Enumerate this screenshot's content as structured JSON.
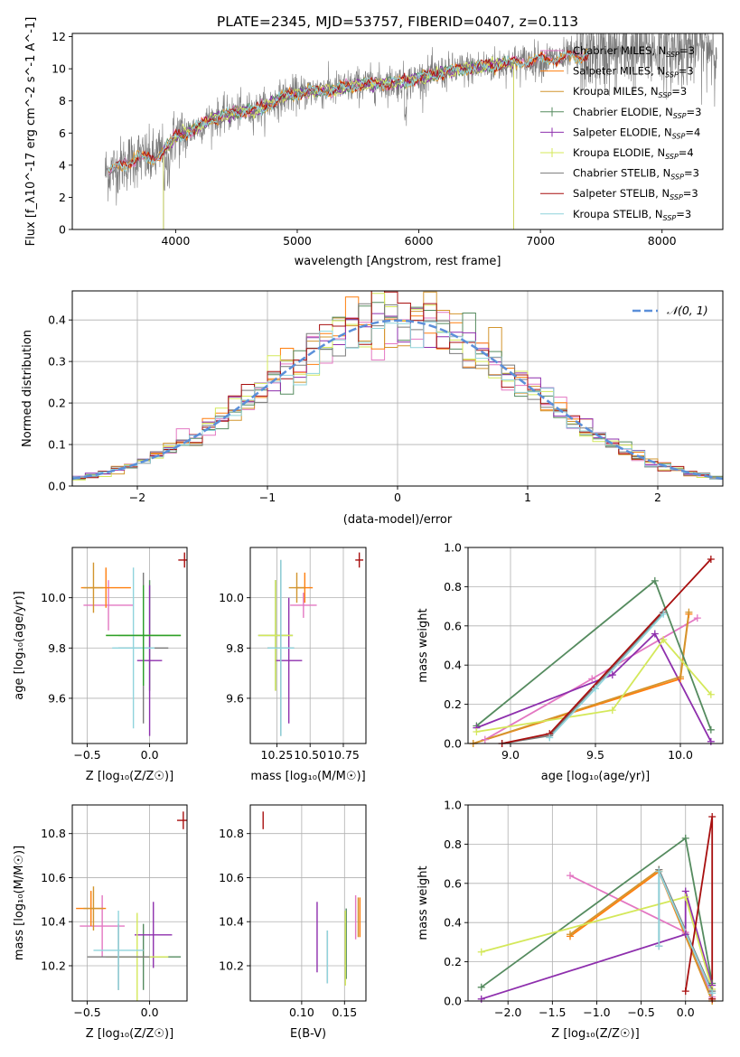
{
  "figure": {
    "title": "PLATE=2345, MJD=53757, FIBERID=0407, z=0.113"
  },
  "colors": {
    "Chabrier MILES": "#e377c2",
    "Salpeter MILES": "#ff7f0e",
    "Kroupa MILES": "#d2952e",
    "Chabrier ELODIE": "#558b5f",
    "Salpeter ELODIE": "#8e2fad",
    "Kroupa ELODIE": "#d4e85a",
    "Chabrier STELIB": "#7a7a7a",
    "Salpeter STELIB": "#a80f0f",
    "Kroupa STELIB": "#8fd4dc",
    "extra_green": "#2ca02c",
    "gaussian": "#5b8fd9",
    "grid": "#b0b0b0"
  },
  "chart_data": [
    {
      "id": "spectrum",
      "type": "line",
      "xlabel": "wavelength [Angstrom, rest frame]",
      "ylabel": "Flux [f_λ10^-17 erg cm^-2 s^-1 A^-1]",
      "xlim": [
        3150,
        8500
      ],
      "ylim": [
        0,
        12.2
      ],
      "xticks": [
        4000,
        5000,
        6000,
        7000,
        8000
      ],
      "yticks": [
        0,
        2,
        4,
        6,
        8,
        10,
        12
      ],
      "grid": false,
      "legend_position": "upper-right",
      "legend": [
        {
          "model": "Chabrier MILES",
          "label": "Chabrier MILES, N",
          "sub": "SSP",
          "suffix": "=3"
        },
        {
          "model": "Salpeter MILES",
          "label": "Salpeter MILES, N",
          "sub": "SSP",
          "suffix": "=3"
        },
        {
          "model": "Kroupa MILES",
          "label": "Kroupa MILES, N",
          "sub": "SSP",
          "suffix": "=3"
        },
        {
          "model": "Chabrier ELODIE",
          "label": "Chabrier ELODIE, N",
          "sub": "SSP",
          "suffix": "=3"
        },
        {
          "model": "Salpeter ELODIE",
          "label": "Salpeter ELODIE, N",
          "sub": "SSP",
          "suffix": "=4"
        },
        {
          "model": "Kroupa ELODIE",
          "label": "Kroupa ELODIE, N",
          "sub": "SSP",
          "suffix": "=4"
        },
        {
          "model": "Chabrier STELIB",
          "label": "Chabrier STELIB, N",
          "sub": "SSP",
          "suffix": "=3"
        },
        {
          "model": "Salpeter STELIB",
          "label": "Salpeter STELIB, N",
          "sub": "SSP",
          "suffix": "=3"
        },
        {
          "model": "Kroupa STELIB",
          "label": "Kroupa STELIB, N",
          "sub": "SSP",
          "suffix": "=3"
        }
      ],
      "continuum": [
        [
          3450,
          3.6
        ],
        [
          3600,
          4.2
        ],
        [
          3700,
          4.5
        ],
        [
          3800,
          4.3
        ],
        [
          3900,
          4.9
        ],
        [
          4000,
          5.8
        ],
        [
          4100,
          6.0
        ],
        [
          4300,
          6.9
        ],
        [
          4500,
          7.3
        ],
        [
          4700,
          7.5
        ],
        [
          4900,
          8.3
        ],
        [
          5100,
          8.6
        ],
        [
          5300,
          8.7
        ],
        [
          5500,
          9.0
        ],
        [
          5700,
          9.1
        ],
        [
          5900,
          9.2
        ],
        [
          6100,
          9.6
        ],
        [
          6300,
          9.9
        ],
        [
          6500,
          10.1
        ],
        [
          6700,
          10.3
        ],
        [
          6900,
          10.5
        ],
        [
          7100,
          10.6
        ],
        [
          7300,
          10.8
        ],
        [
          7400,
          10.9
        ]
      ],
      "data_range": [
        3420,
        8450
      ],
      "model_ranges": {
        "Chabrier MILES": [
          3450,
          7400
        ],
        "Salpeter MILES": [
          3450,
          7400
        ],
        "Kroupa MILES": [
          3450,
          7400
        ],
        "Chabrier ELODIE": [
          3900,
          6780
        ],
        "Salpeter ELODIE": [
          3900,
          6780
        ],
        "Kroupa ELODIE": [
          3900,
          6780
        ],
        "Chabrier STELIB": [
          3450,
          7400
        ],
        "Salpeter STELIB": [
          3450,
          7400
        ],
        "Kroupa STELIB": [
          3450,
          7400
        ]
      }
    },
    {
      "id": "residuals",
      "type": "line",
      "xlabel": "(data-model)/error",
      "ylabel": "Normed distribution",
      "xlim": [
        -2.5,
        2.5
      ],
      "ylim": [
        0,
        0.47
      ],
      "xticks": [
        -2,
        -1,
        0,
        1,
        2
      ],
      "yticks": [
        0.0,
        0.1,
        0.2,
        0.3,
        0.4
      ],
      "grid": true,
      "legend_position": "upper-right",
      "legend": [
        {
          "label": "𝒩(0, 1)",
          "style": "dashed"
        }
      ],
      "bins": {
        "start": -2.5,
        "width": 0.1,
        "count": 50
      },
      "gaussian": {
        "mu": 0,
        "sigma": 1
      }
    },
    {
      "id": "age_vs_Z",
      "type": "scatter",
      "xlabel": "Z [log₁₀(Z/Z☉)]",
      "ylabel": "age  [log₁₀(age/yr)]",
      "xlim": [
        -0.62,
        0.3
      ],
      "ylim": [
        9.42,
        10.2
      ],
      "xticks": [
        -0.5,
        0.0
      ],
      "yticks": [
        9.6,
        9.8,
        10.0
      ],
      "grid": true,
      "points": [
        {
          "model": "Chabrier MILES",
          "x": -0.33,
          "y": 9.97,
          "xerr": 0.2,
          "yerr": 0.1
        },
        {
          "model": "Salpeter MILES",
          "x": -0.35,
          "y": 10.04,
          "xerr": 0.2,
          "yerr": 0.08
        },
        {
          "model": "Kroupa MILES",
          "x": -0.45,
          "y": 10.04,
          "xerr": 0.08,
          "yerr": 0.1
        },
        {
          "model": "Chabrier ELODIE",
          "x": 0.0,
          "y": 9.85,
          "xerr": 0.25,
          "yerr": 0.22
        },
        {
          "model": "Salpeter ELODIE",
          "x": 0.0,
          "y": 9.75,
          "xerr": 0.1,
          "yerr": 0.3
        },
        {
          "model": "Kroupa ELODIE",
          "x": -0.05,
          "y": 9.85,
          "xerr": 0.3,
          "yerr": 0.2
        },
        {
          "model": "Chabrier STELIB",
          "x": -0.05,
          "y": 9.8,
          "xerr": 0.2,
          "yerr": 0.3
        },
        {
          "model": "Salpeter STELIB",
          "x": 0.28,
          "y": 10.15,
          "xerr": 0.05,
          "yerr": 0.03
        },
        {
          "model": "Kroupa STELIB",
          "x": -0.13,
          "y": 9.8,
          "xerr": 0.17,
          "yerr": 0.32
        },
        {
          "model": "extra_green",
          "x": -0.05,
          "y": 9.85,
          "xerr": 0.3,
          "yerr": 0.2
        }
      ]
    },
    {
      "id": "age_vs_mass",
      "type": "scatter",
      "xlabel": "mass [log₁₀(M/M☉)]",
      "ylabel": "",
      "xlim": [
        10.05,
        10.92
      ],
      "ylim": [
        9.42,
        10.2
      ],
      "xticks": [
        10.25,
        10.5,
        10.75
      ],
      "yticks": [
        9.6,
        9.8,
        10.0
      ],
      "grid": true,
      "points": [
        {
          "model": "Chabrier MILES",
          "x": 10.45,
          "y": 9.97,
          "xerr": 0.1,
          "yerr": 0.05
        },
        {
          "model": "Salpeter MILES",
          "x": 10.46,
          "y": 10.04,
          "xerr": 0.06,
          "yerr": 0.06
        },
        {
          "model": "Kroupa MILES",
          "x": 10.4,
          "y": 10.04,
          "xerr": 0.06,
          "yerr": 0.06
        },
        {
          "model": "Chabrier ELODIE",
          "x": 10.24,
          "y": 9.85,
          "xerr": 0.13,
          "yerr": 0.22
        },
        {
          "model": "Salpeter ELODIE",
          "x": 10.34,
          "y": 9.75,
          "xerr": 0.1,
          "yerr": 0.25
        },
        {
          "model": "Kroupa ELODIE",
          "x": 10.24,
          "y": 9.85,
          "xerr": 0.13,
          "yerr": 0.22
        },
        {
          "model": "Chabrier STELIB",
          "x": 10.28,
          "y": 9.8,
          "xerr": 0.1,
          "yerr": 0.35
        },
        {
          "model": "Salpeter STELIB",
          "x": 10.87,
          "y": 10.15,
          "xerr": 0.03,
          "yerr": 0.03
        },
        {
          "model": "Kroupa STELIB",
          "x": 10.28,
          "y": 9.8,
          "xerr": 0.1,
          "yerr": 0.35
        }
      ]
    },
    {
      "id": "massweight_vs_age",
      "type": "line",
      "xlabel": "age  [log₁₀(age/yr)]",
      "ylabel": "mass weight",
      "xlim": [
        8.75,
        10.25
      ],
      "ylim": [
        0,
        1
      ],
      "xticks": [
        9.0,
        9.5,
        10.0
      ],
      "yticks": [
        0.0,
        0.2,
        0.4,
        0.6,
        0.8,
        1.0
      ],
      "grid": true,
      "series": [
        {
          "model": "Chabrier MILES",
          "points": [
            [
              8.85,
              0.02
            ],
            [
              9.48,
              0.33
            ],
            [
              10.1,
              0.64
            ]
          ]
        },
        {
          "model": "Salpeter MILES",
          "points": [
            [
              8.78,
              0.0
            ],
            [
              10.0,
              0.33
            ],
            [
              10.05,
              0.66
            ]
          ]
        },
        {
          "model": "Kroupa MILES",
          "points": [
            [
              8.78,
              0.0
            ],
            [
              10.0,
              0.34
            ],
            [
              10.05,
              0.67
            ]
          ]
        },
        {
          "model": "Chabrier ELODIE",
          "points": [
            [
              8.8,
              0.09
            ],
            [
              9.85,
              0.83
            ],
            [
              10.18,
              0.07
            ]
          ]
        },
        {
          "model": "Salpeter ELODIE",
          "points": [
            [
              8.8,
              0.08
            ],
            [
              9.6,
              0.35
            ],
            [
              9.85,
              0.56
            ],
            [
              10.18,
              0.01
            ]
          ]
        },
        {
          "model": "Kroupa ELODIE",
          "points": [
            [
              8.8,
              0.06
            ],
            [
              9.6,
              0.17
            ],
            [
              9.9,
              0.53
            ],
            [
              10.18,
              0.25
            ]
          ]
        },
        {
          "model": "Chabrier STELIB",
          "points": [
            [
              8.95,
              0.0
            ],
            [
              9.23,
              0.04
            ],
            [
              9.9,
              0.67
            ]
          ]
        },
        {
          "model": "Salpeter STELIB",
          "points": [
            [
              8.95,
              0.0
            ],
            [
              9.23,
              0.05
            ],
            [
              10.18,
              0.94
            ]
          ]
        },
        {
          "model": "Kroupa STELIB",
          "points": [
            [
              9.23,
              0.03
            ],
            [
              9.5,
              0.28
            ],
            [
              9.9,
              0.66
            ]
          ]
        }
      ]
    },
    {
      "id": "mass_vs_Z",
      "type": "scatter",
      "xlabel": "Z [log₁₀(Z/Z☉)]",
      "ylabel": "mass [log₁₀(M/M☉)]",
      "xlim": [
        -0.62,
        0.3
      ],
      "ylim": [
        10.04,
        10.93
      ],
      "xticks": [
        -0.5,
        0.0
      ],
      "yticks": [
        10.2,
        10.4,
        10.6,
        10.8
      ],
      "grid": true,
      "points": [
        {
          "model": "Chabrier MILES",
          "x": -0.38,
          "y": 10.38,
          "xerr": 0.18,
          "yerr": 0.14
        },
        {
          "model": "Salpeter MILES",
          "x": -0.47,
          "y": 10.46,
          "xerr": 0.12,
          "yerr": 0.08
        },
        {
          "model": "Kroupa MILES",
          "x": -0.45,
          "y": 10.46,
          "xerr": 0.08,
          "yerr": 0.1
        },
        {
          "model": "Chabrier ELODIE",
          "x": -0.05,
          "y": 10.24,
          "xerr": 0.3,
          "yerr": 0.15
        },
        {
          "model": "Salpeter ELODIE",
          "x": 0.03,
          "y": 10.34,
          "xerr": 0.15,
          "yerr": 0.15
        },
        {
          "model": "Kroupa ELODIE",
          "x": -0.1,
          "y": 10.24,
          "xerr": 0.25,
          "yerr": 0.2
        },
        {
          "model": "Chabrier STELIB",
          "x": -0.25,
          "y": 10.24,
          "xerr": 0.25,
          "yerr": 0.15
        },
        {
          "model": "Salpeter STELIB",
          "x": 0.27,
          "y": 10.86,
          "xerr": 0.05,
          "yerr": 0.04
        },
        {
          "model": "Kroupa STELIB",
          "x": -0.25,
          "y": 10.27,
          "xerr": 0.2,
          "yerr": 0.18
        }
      ]
    },
    {
      "id": "mass_vs_EBV",
      "type": "scatter",
      "xlabel": "E(B-V)",
      "ylabel": "",
      "xlim": [
        0.04,
        0.175
      ],
      "ylim": [
        10.04,
        10.93
      ],
      "xticks": [
        0.1,
        0.15
      ],
      "yticks": [
        10.2,
        10.4,
        10.6,
        10.8
      ],
      "grid": true,
      "points": [
        {
          "model": "Chabrier MILES",
          "x": 0.163,
          "y": 10.42,
          "xerr": 0,
          "yerr": 0.1
        },
        {
          "model": "Salpeter MILES",
          "x": 0.168,
          "y": 10.42,
          "xerr": 0,
          "yerr": 0.09
        },
        {
          "model": "Kroupa MILES",
          "x": 0.166,
          "y": 10.42,
          "xerr": 0,
          "yerr": 0.09
        },
        {
          "model": "Chabrier ELODIE",
          "x": 0.152,
          "y": 10.3,
          "xerr": 0,
          "yerr": 0.16
        },
        {
          "model": "Salpeter ELODIE",
          "x": 0.118,
          "y": 10.33,
          "xerr": 0,
          "yerr": 0.16
        },
        {
          "model": "Kroupa ELODIE",
          "x": 0.151,
          "y": 10.28,
          "xerr": 0,
          "yerr": 0.17
        },
        {
          "model": "Chabrier STELIB",
          "x": 0.13,
          "y": 10.24,
          "xerr": 0,
          "yerr": 0.12
        },
        {
          "model": "Salpeter STELIB",
          "x": 0.055,
          "y": 10.86,
          "xerr": 0,
          "yerr": 0.04
        },
        {
          "model": "Kroupa STELIB",
          "x": 0.13,
          "y": 10.24,
          "xerr": 0,
          "yerr": 0.12
        }
      ]
    },
    {
      "id": "massweight_vs_Z",
      "type": "line",
      "xlabel": "Z [log₁₀(Z/Z☉)]",
      "ylabel": "mass weight",
      "xlim": [
        -2.45,
        0.42
      ],
      "ylim": [
        0,
        1
      ],
      "xticks": [
        -2.0,
        -1.5,
        -1.0,
        -0.5,
        0.0
      ],
      "yticks": [
        0.0,
        0.2,
        0.4,
        0.6,
        0.8,
        1.0
      ],
      "grid": true,
      "series": [
        {
          "model": "Chabrier MILES",
          "points": [
            [
              -1.3,
              0.64
            ],
            [
              0.0,
              0.35
            ],
            [
              0.3,
              0.02
            ]
          ]
        },
        {
          "model": "Salpeter MILES",
          "points": [
            [
              -1.3,
              0.33
            ],
            [
              -0.3,
              0.66
            ],
            [
              0.3,
              0.0
            ]
          ]
        },
        {
          "model": "Kroupa MILES",
          "points": [
            [
              -1.3,
              0.34
            ],
            [
              -0.3,
              0.67
            ],
            [
              0.3,
              0.0
            ]
          ]
        },
        {
          "model": "Chabrier ELODIE",
          "points": [
            [
              -2.3,
              0.07
            ],
            [
              0.0,
              0.83
            ],
            [
              0.3,
              0.09
            ]
          ]
        },
        {
          "model": "Salpeter ELODIE",
          "points": [
            [
              -2.3,
              0.01
            ],
            [
              0.0,
              0.34
            ],
            [
              0.0,
              0.56
            ],
            [
              0.3,
              0.08
            ]
          ]
        },
        {
          "model": "Kroupa ELODIE",
          "points": [
            [
              -2.3,
              0.25
            ],
            [
              0.0,
              0.53
            ],
            [
              0.3,
              0.06
            ]
          ]
        },
        {
          "model": "Chabrier STELIB",
          "points": [
            [
              -0.3,
              0.28
            ],
            [
              -0.3,
              0.67
            ],
            [
              0.3,
              0.05
            ]
          ]
        },
        {
          "model": "Salpeter STELIB",
          "points": [
            [
              0.0,
              0.05
            ],
            [
              0.3,
              0.94
            ],
            [
              0.3,
              0.01
            ]
          ]
        },
        {
          "model": "Kroupa STELIB",
          "points": [
            [
              -0.3,
              0.28
            ],
            [
              -0.3,
              0.66
            ],
            [
              0.3,
              0.04
            ]
          ]
        }
      ]
    }
  ]
}
